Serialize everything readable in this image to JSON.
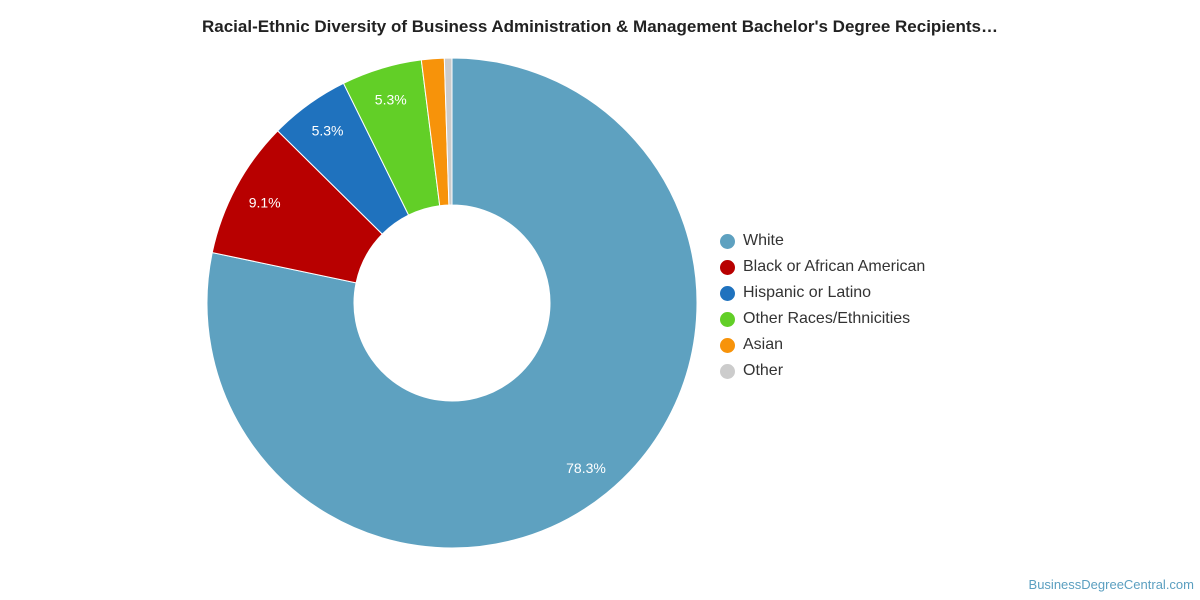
{
  "chart_data": {
    "type": "pie",
    "title": "Racial-Ethnic Diversity of Business Administration & Management Bachelor's Degree Recipients…",
    "donut": true,
    "legend_position": "right",
    "slices": [
      {
        "name": "White",
        "value": 78.3,
        "label": "78.3%",
        "color": "#5ea1c0"
      },
      {
        "name": "Black or African American",
        "value": 9.1,
        "label": "9.1%",
        "color": "#b80000"
      },
      {
        "name": "Hispanic or Latino",
        "value": 5.3,
        "label": "5.3%",
        "color": "#1f72be"
      },
      {
        "name": "Other Races/Ethnicities",
        "value": 5.3,
        "label": "5.3%",
        "color": "#62cf27"
      },
      {
        "name": "Asian",
        "value": 1.5,
        "label": "",
        "color": "#f7930a"
      },
      {
        "name": "Other",
        "value": 0.5,
        "label": "",
        "color": "#cccccc"
      }
    ]
  },
  "credit": "BusinessDegreeCentral.com"
}
